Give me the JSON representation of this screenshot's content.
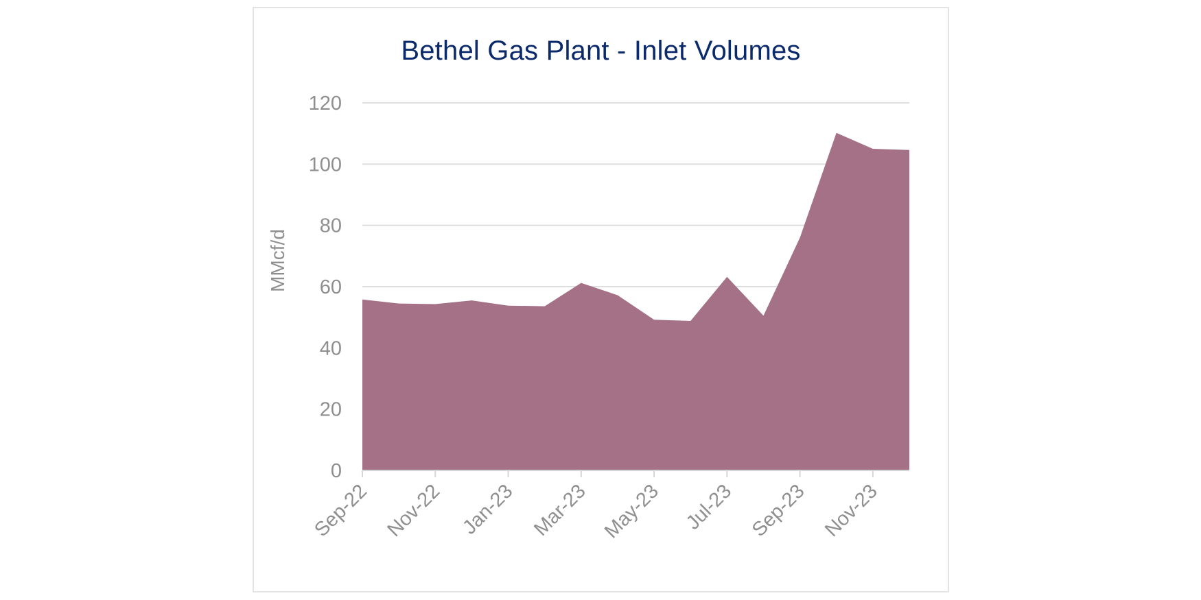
{
  "chart_data": {
    "type": "area",
    "title": "Bethel Gas Plant - Inlet Volumes",
    "xlabel": "",
    "ylabel": "MMcf/d",
    "ylim": [
      0,
      120
    ],
    "yticks": [
      0,
      20,
      40,
      60,
      80,
      100,
      120
    ],
    "grid": true,
    "legend": "none",
    "color": "#a47187",
    "x": [
      "Sep-22",
      "Oct-22",
      "Nov-22",
      "Dec-22",
      "Jan-23",
      "Feb-23",
      "Mar-23",
      "Apr-23",
      "May-23",
      "Jun-23",
      "Jul-23",
      "Aug-23",
      "Sep-23",
      "Oct-23",
      "Nov-23",
      "Dec-23"
    ],
    "xtick_labels": [
      "Sep-22",
      "Nov-22",
      "Jan-23",
      "Mar-23",
      "May-23",
      "Jul-23",
      "Sep-23",
      "Nov-23"
    ],
    "series": [
      {
        "values": [
          55.8,
          54.5,
          54.3,
          55.5,
          53.8,
          53.6,
          61.2,
          57.2,
          49.2,
          48.8,
          63.2,
          50.5,
          76.0,
          110.2,
          105.0,
          104.6
        ]
      }
    ]
  }
}
